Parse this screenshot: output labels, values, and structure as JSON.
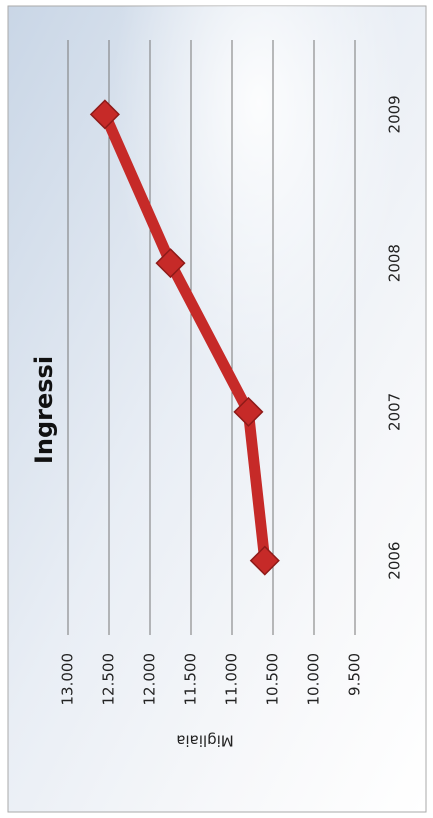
{
  "chart_data": {
    "type": "line",
    "title": "Ingressi",
    "y_label": "Migliaia",
    "categories": [
      "2006",
      "2007",
      "2008",
      "2009"
    ],
    "series": [
      {
        "name": "Ingressi",
        "color": "#c62a28",
        "values": [
          10600,
          10800,
          11750,
          12550
        ]
      }
    ],
    "ylim": [
      9500,
      13000
    ],
    "yticks": [
      {
        "value": 9500,
        "label": "9.500"
      },
      {
        "value": 10000,
        "label": "10.000"
      },
      {
        "value": 10500,
        "label": "10.500"
      },
      {
        "value": 11000,
        "label": "11.000"
      },
      {
        "value": 11500,
        "label": "11.500"
      },
      {
        "value": 12000,
        "label": "12.000"
      },
      {
        "value": 12500,
        "label": "12.500"
      },
      {
        "value": 13000,
        "label": "13.000"
      }
    ],
    "grid": true
  }
}
